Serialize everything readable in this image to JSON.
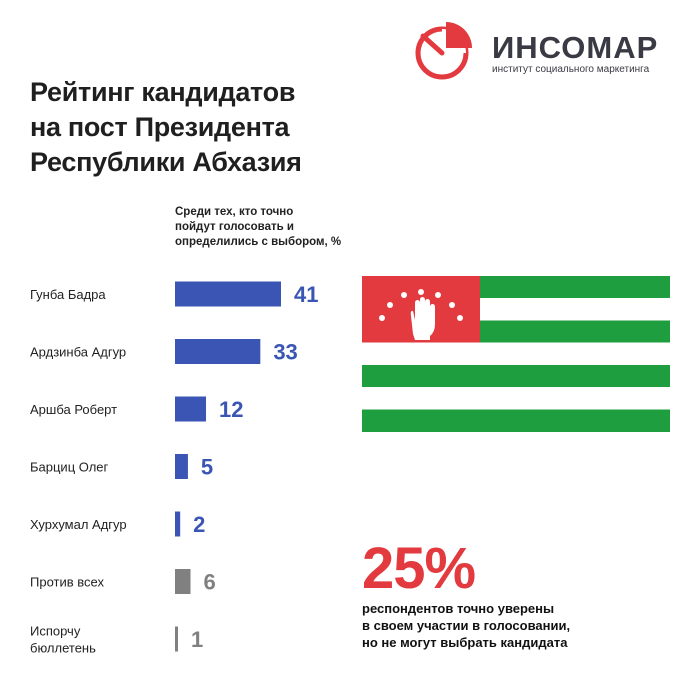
{
  "title_lines": [
    "Рейтинг кандидатов",
    "на пост Президента",
    "Республики Абхазия"
  ],
  "logo": {
    "name": "ИНСОМАР",
    "subtitle": "институт социального маркетинга",
    "accent_color": "#e23a3e"
  },
  "note_lines": [
    "Среди тех, кто точно",
    "пойдут голосовать и",
    "определились с выбором, %"
  ],
  "chart_data": {
    "type": "bar",
    "orientation": "horizontal",
    "categories": [
      [
        "Гунба Бадра"
      ],
      [
        "Ардзинба Адгур"
      ],
      [
        "Аршба Роберт"
      ],
      [
        "Барциц Олег"
      ],
      [
        "Хурхумал Адгур"
      ],
      [
        "Против всех"
      ],
      [
        "Испорчу",
        "бюллетень"
      ]
    ],
    "values": [
      41,
      33,
      12,
      5,
      2,
      6,
      1
    ],
    "bar_colors": [
      "#3a55b4",
      "#3a55b4",
      "#3a55b4",
      "#3a55b4",
      "#3a55b4",
      "#808080",
      "#808080"
    ],
    "value_colors": [
      "#3a55b4",
      "#3a55b4",
      "#3a55b4",
      "#3a55b4",
      "#3a55b4",
      "#808080",
      "#808080"
    ],
    "unit": "%",
    "xlim": [
      0,
      41
    ],
    "grid": false,
    "legend": "none"
  },
  "flag": {
    "name": "flag-of-abkhazia",
    "green": "#1e9e3f",
    "red": "#e23a3e",
    "white": "#ffffff"
  },
  "stat": {
    "value": "25%",
    "lines": [
      "респондентов точно уверены",
      "в своем участии в голосовании,",
      "но не могут выбрать кандидата"
    ]
  }
}
